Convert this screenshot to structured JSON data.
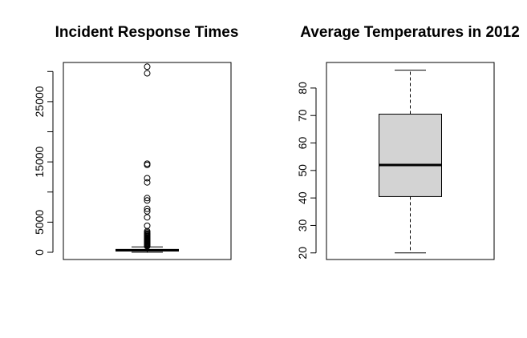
{
  "chart_data": [
    {
      "type": "box",
      "title": "Incident Response Times",
      "xlabel": "",
      "ylabel": "",
      "ylim": [
        -1200,
        31500
      ],
      "yticks": [
        0,
        5000,
        15000,
        25000
      ],
      "minor_yticks": [
        10000,
        20000,
        30000
      ],
      "box": {
        "whisker_low": 0,
        "q1": 200,
        "median": 330,
        "q3": 480,
        "whisker_high": 900,
        "fill": "#d3d3d3"
      },
      "outliers": [
        1000,
        1100,
        1200,
        1300,
        1400,
        1500,
        1600,
        1700,
        1800,
        1900,
        2000,
        2100,
        2200,
        2300,
        2400,
        2550,
        2700,
        2850,
        3000,
        3100,
        3300,
        3500,
        4400,
        5800,
        6800,
        7200,
        8600,
        9000,
        11600,
        12300,
        14500,
        14700,
        29700,
        30800
      ]
    },
    {
      "type": "box",
      "title": "Average Temperatures in 2012",
      "xlabel": "",
      "ylabel": "",
      "ylim": [
        17.6,
        89.3
      ],
      "yticks": [
        20,
        30,
        40,
        50,
        60,
        70,
        80
      ],
      "box": {
        "whisker_low": 20,
        "q1": 40.5,
        "median": 52,
        "q3": 70.5,
        "whisker_high": 86.5,
        "fill": "#d3d3d3"
      },
      "outliers": []
    }
  ]
}
